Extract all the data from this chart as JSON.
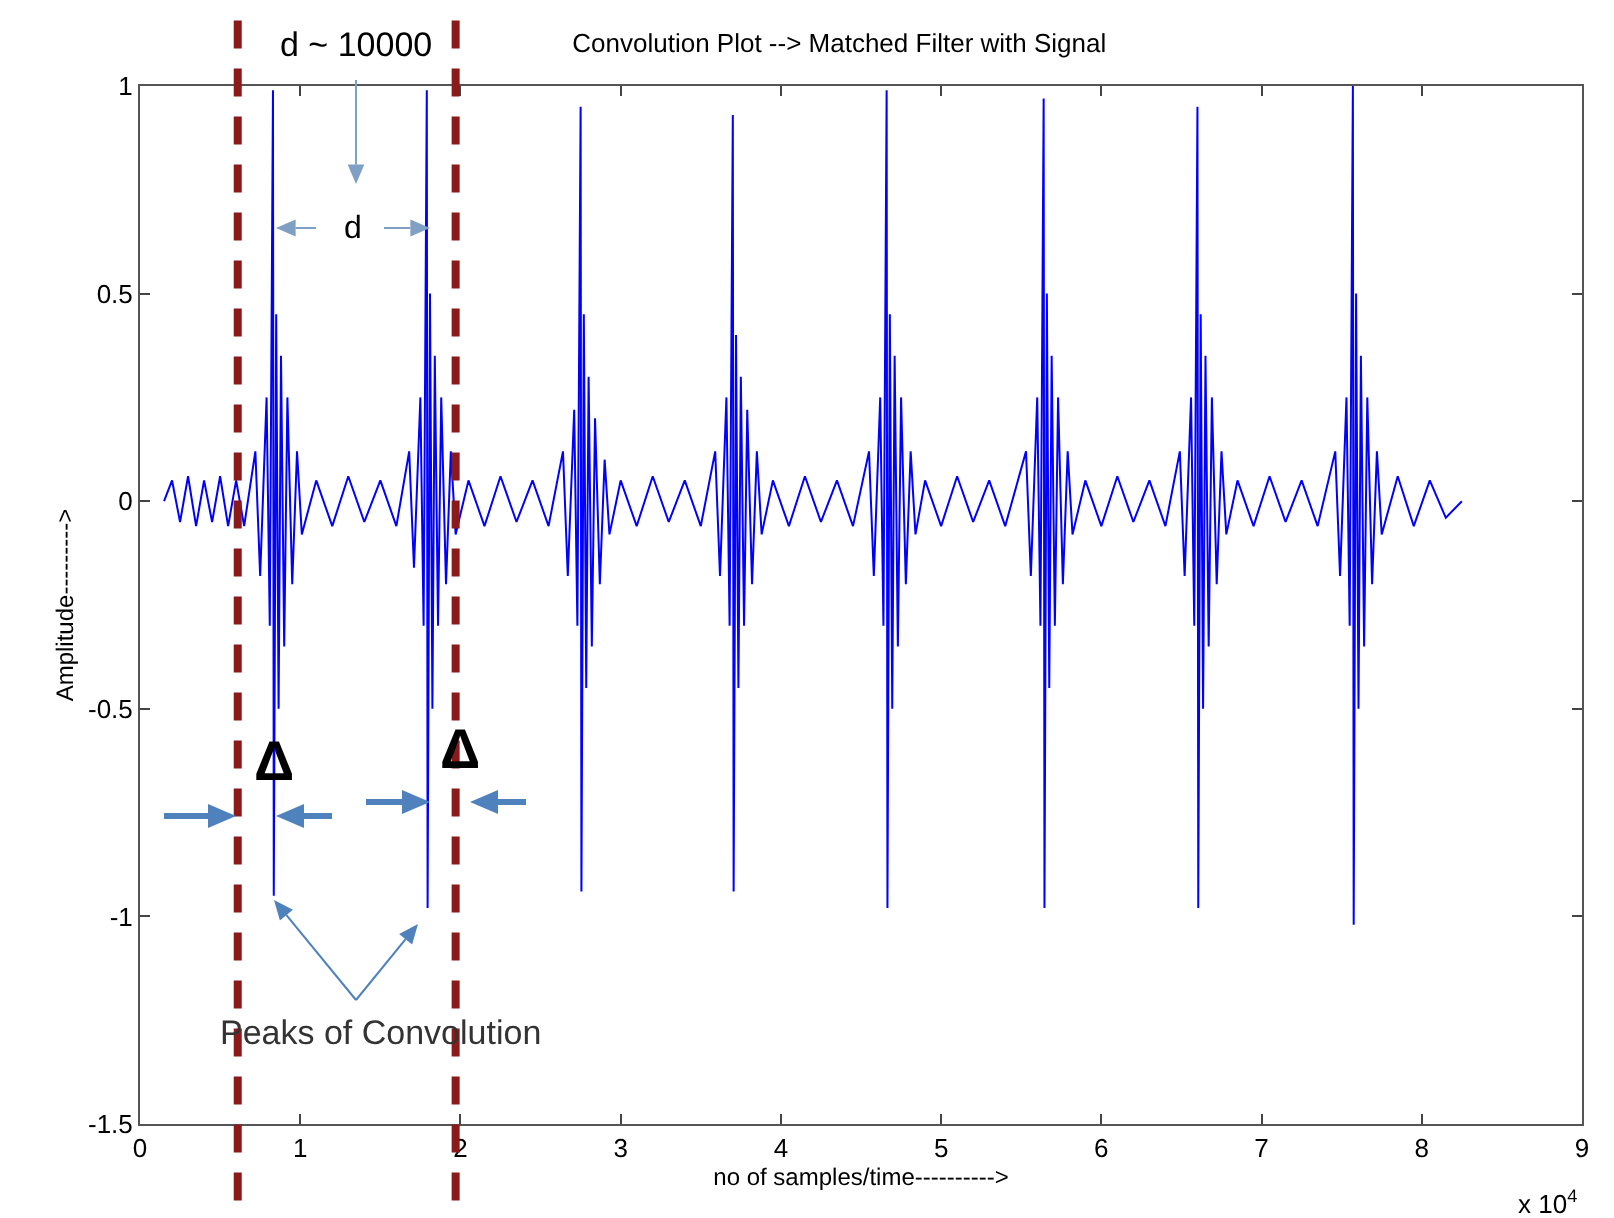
{
  "chart_data": {
    "type": "line",
    "title": "Convolution Plot --> Matched Filter with Signal",
    "xlabel": "no of samples/time---------->",
    "ylabel": "Amplitude--------->",
    "x": [
      0.15,
      0.2,
      0.25,
      0.3,
      0.35,
      0.4,
      0.45,
      0.5,
      0.55,
      0.6,
      0.65,
      0.72,
      0.75,
      0.79,
      0.81,
      0.83,
      0.835,
      0.85,
      0.865,
      0.88,
      0.9,
      0.92,
      0.95,
      0.98,
      1.01,
      1.1,
      1.2,
      1.3,
      1.4,
      1.5,
      1.6,
      1.68,
      1.71,
      1.75,
      1.77,
      1.79,
      1.795,
      1.81,
      1.825,
      1.84,
      1.86,
      1.88,
      1.91,
      1.94,
      1.97,
      2.05,
      2.15,
      2.25,
      2.35,
      2.45,
      2.55,
      2.64,
      2.67,
      2.71,
      2.73,
      2.75,
      2.755,
      2.77,
      2.785,
      2.8,
      2.82,
      2.84,
      2.87,
      2.9,
      2.93,
      3.0,
      3.1,
      3.2,
      3.3,
      3.4,
      3.5,
      3.59,
      3.62,
      3.66,
      3.68,
      3.7,
      3.705,
      3.72,
      3.735,
      3.75,
      3.77,
      3.79,
      3.82,
      3.85,
      3.88,
      3.95,
      4.05,
      4.15,
      4.25,
      4.35,
      4.45,
      4.55,
      4.58,
      4.62,
      4.64,
      4.66,
      4.665,
      4.68,
      4.695,
      4.71,
      4.73,
      4.75,
      4.78,
      4.81,
      4.84,
      4.9,
      5.0,
      5.1,
      5.2,
      5.3,
      5.4,
      5.53,
      5.56,
      5.6,
      5.62,
      5.64,
      5.645,
      5.66,
      5.675,
      5.69,
      5.71,
      5.73,
      5.76,
      5.79,
      5.82,
      5.9,
      6.0,
      6.1,
      6.2,
      6.3,
      6.4,
      6.49,
      6.52,
      6.56,
      6.58,
      6.6,
      6.605,
      6.62,
      6.635,
      6.65,
      6.67,
      6.69,
      6.72,
      6.75,
      6.78,
      6.85,
      6.95,
      7.05,
      7.15,
      7.25,
      7.35,
      7.46,
      7.49,
      7.53,
      7.55,
      7.57,
      7.575,
      7.59,
      7.605,
      7.62,
      7.64,
      7.66,
      7.69,
      7.72,
      7.75,
      7.85,
      7.95,
      8.05,
      8.15,
      8.25
    ],
    "series": [
      {
        "color": "#0000ff",
        "values": [
          0,
          0.05,
          -0.05,
          0.06,
          -0.06,
          0.05,
          -0.05,
          0.06,
          -0.06,
          0.05,
          -0.06,
          0.12,
          -0.18,
          0.25,
          -0.3,
          0.99,
          -0.95,
          0.45,
          -0.5,
          0.35,
          -0.35,
          0.25,
          -0.2,
          0.12,
          -0.08,
          0.05,
          -0.06,
          0.06,
          -0.05,
          0.05,
          -0.06,
          0.12,
          -0.16,
          0.25,
          -0.3,
          0.99,
          -0.98,
          0.5,
          -0.5,
          0.35,
          -0.3,
          0.25,
          -0.2,
          0.12,
          -0.08,
          0.05,
          -0.06,
          0.06,
          -0.05,
          0.05,
          -0.06,
          0.12,
          -0.18,
          0.22,
          -0.3,
          0.95,
          -0.94,
          0.45,
          -0.45,
          0.3,
          -0.35,
          0.2,
          -0.2,
          0.1,
          -0.08,
          0.05,
          -0.06,
          0.06,
          -0.05,
          0.05,
          -0.06,
          0.12,
          -0.18,
          0.25,
          -0.3,
          0.93,
          -0.94,
          0.4,
          -0.45,
          0.3,
          -0.3,
          0.22,
          -0.2,
          0.12,
          -0.08,
          0.05,
          -0.06,
          0.06,
          -0.05,
          0.05,
          -0.06,
          0.12,
          -0.18,
          0.25,
          -0.3,
          0.99,
          -0.98,
          0.45,
          -0.5,
          0.35,
          -0.35,
          0.25,
          -0.2,
          0.12,
          -0.08,
          0.05,
          -0.06,
          0.06,
          -0.05,
          0.05,
          -0.06,
          0.12,
          -0.18,
          0.25,
          -0.3,
          0.97,
          -0.98,
          0.5,
          -0.45,
          0.35,
          -0.3,
          0.25,
          -0.2,
          0.12,
          -0.08,
          0.05,
          -0.06,
          0.06,
          -0.05,
          0.05,
          -0.06,
          0.12,
          -0.18,
          0.25,
          -0.3,
          0.95,
          -0.98,
          0.45,
          -0.5,
          0.35,
          -0.35,
          0.25,
          -0.2,
          0.12,
          -0.08,
          0.05,
          -0.06,
          0.06,
          -0.05,
          0.05,
          -0.06,
          0.12,
          -0.18,
          0.25,
          -0.3,
          1.0,
          -1.02,
          0.5,
          -0.5,
          0.35,
          -0.35,
          0.25,
          -0.2,
          0.12,
          -0.08,
          0.06,
          -0.06,
          0.05,
          -0.04,
          0
        ]
      }
    ],
    "xlim": [
      0,
      9
    ],
    "xticks": [
      0,
      1,
      2,
      3,
      4,
      5,
      6,
      7,
      8,
      9
    ],
    "ylim": [
      -1.5,
      1
    ],
    "yticks": [
      -1.5,
      -1,
      -0.5,
      0,
      0.5,
      1
    ],
    "grid": false,
    "marker": "none",
    "line_style": "solid",
    "ref_lines": [
      {
        "axis": "x",
        "value": 0.61,
        "color": "#8b1a1a",
        "line_style": "dashed"
      },
      {
        "axis": "x",
        "value": 1.97,
        "color": "#8b1a1a",
        "line_style": "dashed"
      }
    ],
    "annotations": [
      "d ~ 10000",
      "d",
      "Δ",
      "Δ",
      "Peaks of Convolution",
      "x 10$^{4}$"
    ]
  }
}
